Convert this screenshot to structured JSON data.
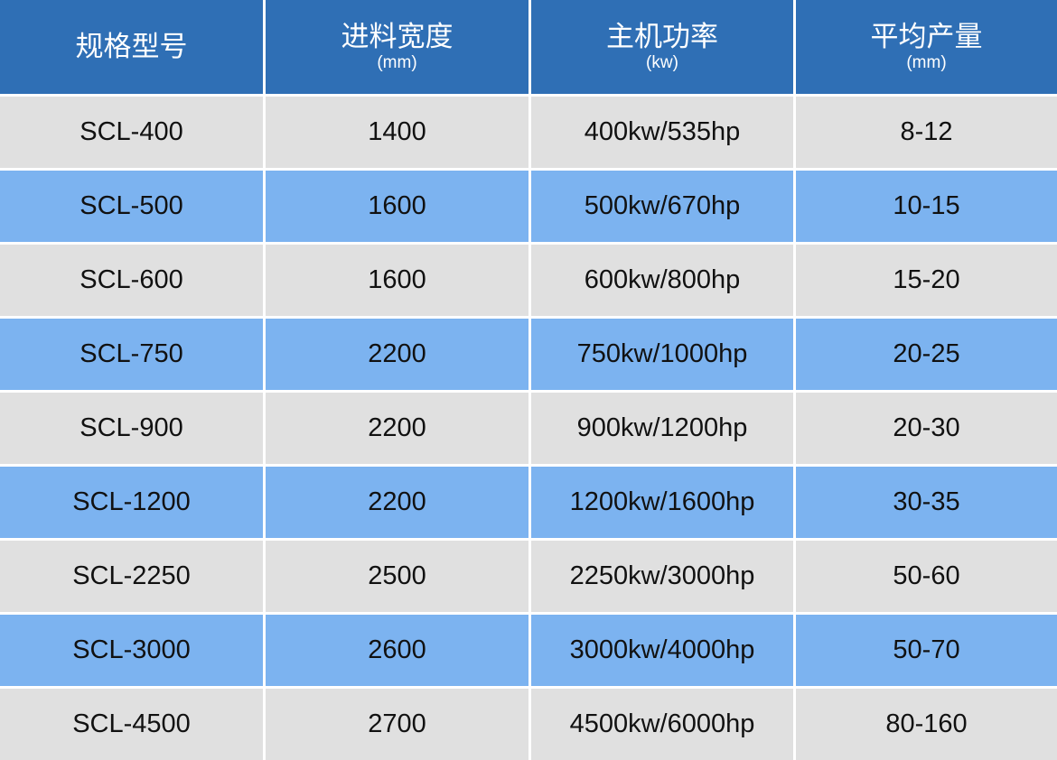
{
  "headers": [
    {
      "title": "规格型号",
      "unit": ""
    },
    {
      "title": "进料宽度",
      "unit": "(mm)"
    },
    {
      "title": "主机功率",
      "unit": "(kw)"
    },
    {
      "title": "平均产量",
      "unit": "(mm)"
    }
  ],
  "rows": [
    [
      "SCL-400",
      "1400",
      "400kw/535hp",
      "8-12"
    ],
    [
      "SCL-500",
      "1600",
      "500kw/670hp",
      "10-15"
    ],
    [
      "SCL-600",
      "1600",
      "600kw/800hp",
      "15-20"
    ],
    [
      "SCL-750",
      "2200",
      "750kw/1000hp",
      "20-25"
    ],
    [
      "SCL-900",
      "2200",
      "900kw/1200hp",
      "20-30"
    ],
    [
      "SCL-1200",
      "2200",
      "1200kw/1600hp",
      "30-35"
    ],
    [
      "SCL-2250",
      "2500",
      "2250kw/3000hp",
      "50-60"
    ],
    [
      "SCL-3000",
      "2600",
      "3000kw/4000hp",
      "50-70"
    ],
    [
      "SCL-4500",
      "2700",
      "4500kw/6000hp",
      "80-160"
    ]
  ],
  "colors": {
    "header": "#2f6fb5",
    "row_odd": "#e0e0e0",
    "row_even": "#7cb3f0"
  }
}
